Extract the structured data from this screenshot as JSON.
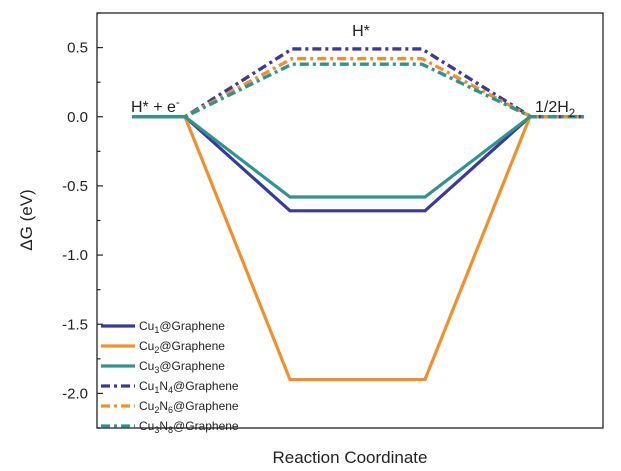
{
  "chart_data": {
    "type": "line",
    "xlabel": "Reaction Coordinate",
    "ylabel": "ΔG (eV)",
    "ylim": [
      -2.25,
      0.75
    ],
    "yticks": [
      "0.5",
      "0.0",
      "-0.5",
      "-1.0",
      "-1.5",
      "-2.0"
    ],
    "ytick_values": [
      0.5,
      0.0,
      -0.5,
      -1.0,
      -1.5,
      -2.0
    ],
    "grid": false,
    "legend_position": "bottom-left",
    "states": [
      {
        "label": "H* + e",
        "superscript": "-"
      },
      {
        "label": "H*",
        "superscript": ""
      },
      {
        "label": "1/2H",
        "subscript": "2"
      }
    ],
    "series": [
      {
        "name": "Cu1@Graphene",
        "legend": [
          [
            "Cu",
            ""
          ],
          [
            "1",
            "sub"
          ],
          [
            "@Graphene",
            ""
          ]
        ],
        "color": "#3a3a9a",
        "style": "solid",
        "values": [
          0,
          -0.68,
          0
        ]
      },
      {
        "name": "Cu2@Graphene",
        "legend": [
          [
            "Cu",
            ""
          ],
          [
            "2",
            "sub"
          ],
          [
            "@Graphene",
            ""
          ]
        ],
        "color": "#f0902a",
        "style": "solid",
        "values": [
          0,
          -1.9,
          0
        ]
      },
      {
        "name": "Cu3@Graphene",
        "legend": [
          [
            "Cu",
            ""
          ],
          [
            "3",
            "sub"
          ],
          [
            "@Graphene",
            ""
          ]
        ],
        "color": "#2f9490",
        "style": "solid",
        "values": [
          0,
          -0.58,
          0
        ]
      },
      {
        "name": "Cu1N4@Graphene",
        "legend": [
          [
            "Cu",
            ""
          ],
          [
            "1",
            "sub"
          ],
          [
            "N",
            ""
          ],
          [
            "4",
            "sub"
          ],
          [
            "@Graphene",
            ""
          ]
        ],
        "color": "#3a3a9a",
        "style": "dashdot",
        "values": [
          0,
          0.49,
          0
        ]
      },
      {
        "name": "Cu2N6@Graphene",
        "legend": [
          [
            "Cu",
            ""
          ],
          [
            "2",
            "sub"
          ],
          [
            "N",
            ""
          ],
          [
            "6",
            "sub"
          ],
          [
            "@Graphene",
            ""
          ]
        ],
        "color": "#f0902a",
        "style": "dashdot",
        "values": [
          0,
          0.42,
          0
        ]
      },
      {
        "name": "Cu3N8@Graphene",
        "legend": [
          [
            "Cu",
            ""
          ],
          [
            "3",
            "sub"
          ],
          [
            "N",
            ""
          ],
          [
            "8",
            "sub"
          ],
          [
            "@Graphene",
            ""
          ]
        ],
        "color": "#2f9490",
        "style": "dashdot",
        "values": [
          0,
          0.38,
          0
        ]
      }
    ]
  }
}
